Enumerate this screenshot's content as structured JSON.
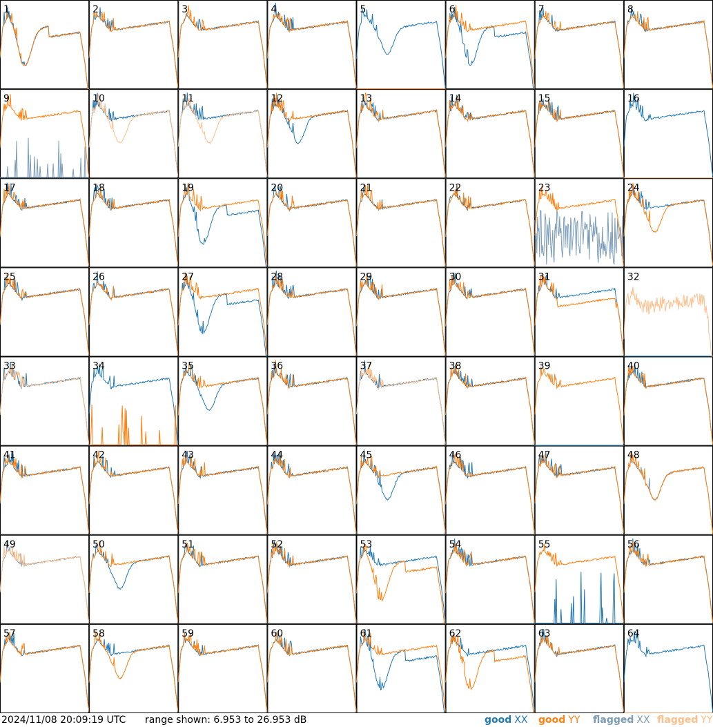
{
  "footer": {
    "timestamp": "2024/11/08 20:09:19 UTC",
    "range_text": "range shown: 6.953 to 26.953 dB"
  },
  "legend": [
    {
      "key": "good_xx",
      "prefix": "good",
      "pol": "XX",
      "color": "#1f77b4"
    },
    {
      "key": "good_yy",
      "prefix": "good",
      "pol": "YY",
      "color": "#ff7f0e"
    },
    {
      "key": "flagged_xx",
      "prefix": "flagged",
      "pol": "XX",
      "color": "#7a9cb8"
    },
    {
      "key": "flagged_yy",
      "prefix": "flagged",
      "pol": "YY",
      "color": "#ffbe8a"
    }
  ],
  "colors": {
    "good_xx": "#1f77b4",
    "good_yy": "#ff7f0e",
    "flagged_xx": "#7a9cb8",
    "flagged_yy": "#ffbe8a",
    "border": "#000000"
  },
  "chart_data": {
    "type": "line",
    "layout": "8x8 small multiples",
    "ylim": [
      6.953,
      26.953
    ],
    "yunit": "dB",
    "panels": [
      {
        "label": "1",
        "xx": "ok",
        "yy": "ok",
        "xx_shape": "drop",
        "yy_shape": "drop"
      },
      {
        "label": "2",
        "xx": "ok",
        "yy": "ok"
      },
      {
        "label": "3",
        "xx": "ok",
        "yy": "ok"
      },
      {
        "label": "4",
        "xx": "ok",
        "yy": "ok"
      },
      {
        "label": "5",
        "xx": "ok",
        "yy": "dead",
        "xx_shape": "dip"
      },
      {
        "label": "6",
        "xx": "ok",
        "yy": "ok",
        "xx_shape": "drop"
      },
      {
        "label": "7",
        "xx": "ok",
        "yy": "ok"
      },
      {
        "label": "8",
        "xx": "ok",
        "yy": "ok"
      },
      {
        "label": "9",
        "xx": "flagged",
        "yy": "ok",
        "xx_shape": "spikes"
      },
      {
        "label": "10",
        "xx": "ok",
        "yy": "flagged",
        "yy_shape": "dip"
      },
      {
        "label": "11",
        "xx": "ok",
        "yy": "flagged",
        "yy_shape": "dip"
      },
      {
        "label": "12",
        "xx": "ok",
        "yy": "ok",
        "xx_shape": "dip"
      },
      {
        "label": "13",
        "xx": "ok",
        "yy": "ok"
      },
      {
        "label": "14",
        "xx": "ok",
        "yy": "ok"
      },
      {
        "label": "15",
        "xx": "ok",
        "yy": "ok"
      },
      {
        "label": "16",
        "xx": "ok",
        "yy": "flagged",
        "yy_shape": "dead"
      },
      {
        "label": "17",
        "xx": "ok",
        "yy": "ok"
      },
      {
        "label": "18",
        "xx": "ok",
        "yy": "ok"
      },
      {
        "label": "19",
        "xx": "ok",
        "yy": "ok",
        "xx_shape": "drop"
      },
      {
        "label": "20",
        "xx": "ok",
        "yy": "ok"
      },
      {
        "label": "21",
        "xx": "ok",
        "yy": "ok"
      },
      {
        "label": "22",
        "xx": "ok",
        "yy": "ok"
      },
      {
        "label": "23",
        "xx": "flagged",
        "yy": "ok",
        "xx_shape": "noise"
      },
      {
        "label": "24",
        "xx": "ok",
        "yy": "ok",
        "yy_shape": "dip"
      },
      {
        "label": "25",
        "xx": "ok",
        "yy": "ok"
      },
      {
        "label": "26",
        "xx": "ok",
        "yy": "ok"
      },
      {
        "label": "27",
        "xx": "ok",
        "yy": "ok",
        "xx_shape": "drop"
      },
      {
        "label": "28",
        "xx": "ok",
        "yy": "ok"
      },
      {
        "label": "29",
        "xx": "ok",
        "yy": "ok"
      },
      {
        "label": "30",
        "xx": "ok",
        "yy": "ok"
      },
      {
        "label": "31",
        "xx": "ok",
        "yy": "ok",
        "yy_shape": "low"
      },
      {
        "label": "32",
        "xx": "dead",
        "yy": "flagged",
        "yy_shape": "noisy"
      },
      {
        "label": "33",
        "xx": "ok",
        "yy": "flagged"
      },
      {
        "label": "34",
        "xx": "ok",
        "yy": "ok",
        "yy_shape": "spikes"
      },
      {
        "label": "35",
        "xx": "ok",
        "yy": "ok",
        "xx_shape": "dip"
      },
      {
        "label": "36",
        "xx": "ok",
        "yy": "ok"
      },
      {
        "label": "37",
        "xx": "ok",
        "yy": "flagged"
      },
      {
        "label": "38",
        "xx": "ok",
        "yy": "ok"
      },
      {
        "label": "39",
        "xx": "dead",
        "yy": "ok"
      },
      {
        "label": "40",
        "xx": "ok",
        "yy": "ok"
      },
      {
        "label": "41",
        "xx": "ok",
        "yy": "ok"
      },
      {
        "label": "42",
        "xx": "ok",
        "yy": "ok"
      },
      {
        "label": "43",
        "xx": "ok",
        "yy": "ok"
      },
      {
        "label": "44",
        "xx": "ok",
        "yy": "ok"
      },
      {
        "label": "45",
        "xx": "ok",
        "yy": "ok",
        "xx_shape": "dip"
      },
      {
        "label": "46",
        "xx": "ok",
        "yy": "ok"
      },
      {
        "label": "47",
        "xx": "ok",
        "yy": "ok"
      },
      {
        "label": "48",
        "xx": "flagged",
        "yy": "ok",
        "xx_shape": "dip",
        "yy_shape": "dip"
      },
      {
        "label": "49",
        "xx": "flagged",
        "yy": "flagged"
      },
      {
        "label": "50",
        "xx": "ok",
        "yy": "ok",
        "xx_shape": "dip"
      },
      {
        "label": "51",
        "xx": "ok",
        "yy": "ok"
      },
      {
        "label": "52",
        "xx": "ok",
        "yy": "ok"
      },
      {
        "label": "53",
        "xx": "ok",
        "yy": "ok",
        "yy_shape": "drop"
      },
      {
        "label": "54",
        "xx": "ok",
        "yy": "ok"
      },
      {
        "label": "55",
        "xx": "ok",
        "yy": "ok",
        "xx_shape": "spikes"
      },
      {
        "label": "56",
        "xx": "ok",
        "yy": "ok"
      },
      {
        "label": "57",
        "xx": "ok",
        "yy": "ok"
      },
      {
        "label": "58",
        "xx": "ok",
        "yy": "ok",
        "yy_shape": "dip"
      },
      {
        "label": "59",
        "xx": "ok",
        "yy": "ok"
      },
      {
        "label": "60",
        "xx": "ok",
        "yy": "ok"
      },
      {
        "label": "61",
        "xx": "ok",
        "yy": "ok",
        "xx_shape": "drop"
      },
      {
        "label": "62",
        "xx": "ok",
        "yy": "ok",
        "yy_shape": "drop"
      },
      {
        "label": "63",
        "xx": "ok",
        "yy": "ok"
      },
      {
        "label": "64",
        "xx": "ok",
        "yy": "flagged",
        "yy_shape": "dead"
      }
    ]
  }
}
